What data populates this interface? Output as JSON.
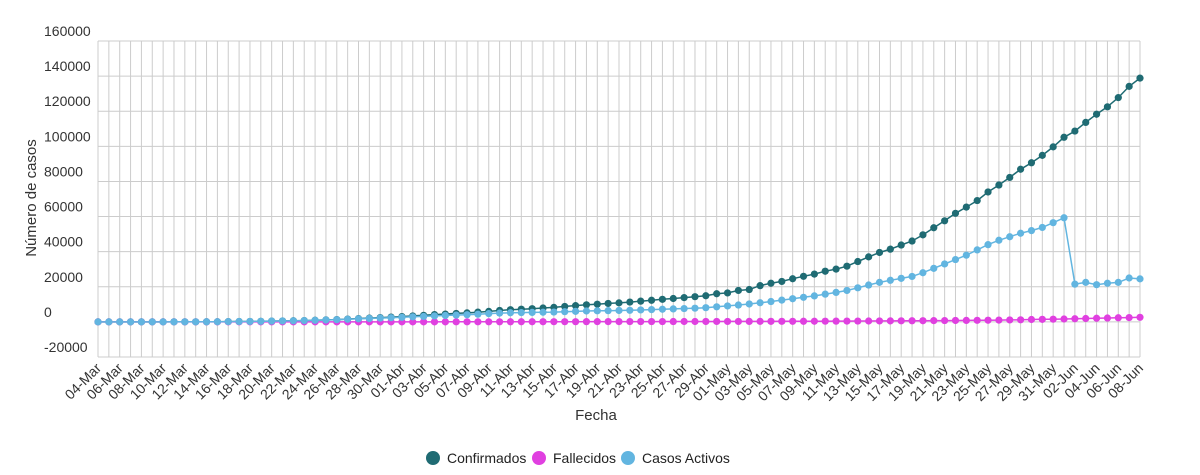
{
  "chart_data": {
    "type": "line",
    "xlabel": "Fecha",
    "ylabel": "Número de casos",
    "ylim": [
      -20000,
      160000
    ],
    "yticks": [
      "160000",
      "140000",
      "120000",
      "100000",
      "80000",
      "60000",
      "40000",
      "20000",
      "0",
      "-20000"
    ],
    "grid": true,
    "legend_position": "bottom",
    "categories": [
      "04-Mar",
      "05-Mar",
      "06-Mar",
      "07-Mar",
      "08-Mar",
      "09-Mar",
      "10-Mar",
      "11-Mar",
      "12-Mar",
      "13-Mar",
      "14-Mar",
      "15-Mar",
      "16-Mar",
      "17-Mar",
      "18-Mar",
      "19-Mar",
      "20-Mar",
      "21-Mar",
      "22-Mar",
      "23-Mar",
      "24-Mar",
      "25-Mar",
      "26-Mar",
      "27-Mar",
      "28-Mar",
      "29-Mar",
      "30-Mar",
      "31-Mar",
      "01-Abr",
      "02-Abr",
      "03-Abr",
      "04-Abr",
      "05-Abr",
      "06-Abr",
      "07-Abr",
      "08-Abr",
      "09-Abr",
      "10-Abr",
      "11-Abr",
      "12-Abr",
      "13-Abr",
      "14-Abr",
      "15-Abr",
      "16-Abr",
      "17-Abr",
      "18-Abr",
      "19-Abr",
      "20-Abr",
      "21-Abr",
      "22-Abr",
      "23-Abr",
      "24-Abr",
      "25-Abr",
      "26-Abr",
      "27-Abr",
      "28-Abr",
      "29-Abr",
      "30-Abr",
      "01-May",
      "02-May",
      "03-May",
      "04-May",
      "05-May",
      "06-May",
      "07-May",
      "08-May",
      "09-May",
      "10-May",
      "11-May",
      "12-May",
      "13-May",
      "14-May",
      "15-May",
      "16-May",
      "17-May",
      "18-May",
      "19-May",
      "20-May",
      "21-May",
      "22-May",
      "23-May",
      "24-May",
      "25-May",
      "26-May",
      "27-May",
      "28-May",
      "29-May",
      "30-May",
      "31-May",
      "01-Jun",
      "02-Jun",
      "03-Jun",
      "04-Jun",
      "05-Jun",
      "06-Jun",
      "07-Jun",
      "08-Jun"
    ],
    "label_every": 2,
    "series": [
      {
        "name": "Confirmados",
        "color": "#1f6b73",
        "values": [
          1,
          3,
          5,
          7,
          10,
          13,
          17,
          23,
          33,
          43,
          61,
          74,
          155,
          201,
          238,
          342,
          434,
          537,
          632,
          746,
          922,
          1142,
          1306,
          1610,
          1909,
          2139,
          2449,
          2738,
          3031,
          3404,
          3737,
          4161,
          4471,
          4815,
          5116,
          5546,
          5972,
          6501,
          6927,
          7213,
          7525,
          7917,
          8273,
          8807,
          9252,
          9730,
          10088,
          10507,
          10832,
          11296,
          11812,
          12306,
          12858,
          13331,
          13813,
          14365,
          14885,
          16023,
          16495,
          17908,
          18435,
          20643,
          22016,
          23048,
          24581,
          25972,
          27219,
          28866,
          30063,
          31721,
          34381,
          37040,
          39542,
          41428,
          43781,
          46059,
          49579,
          53617,
          57581,
          61857,
          65393,
          69102,
          73997,
          77961,
          82289,
          86943,
          90638,
          94858,
          99688,
          105159,
          108686,
          113628,
          118292,
          122499,
          127745,
          134150,
          138846
        ]
      },
      {
        "name": "Fallecidos",
        "color": "#e040e0",
        "values": [
          0,
          0,
          0,
          0,
          0,
          0,
          0,
          0,
          0,
          0,
          0,
          0,
          0,
          0,
          0,
          0,
          0,
          0,
          0,
          0,
          0,
          1,
          2,
          2,
          3,
          5,
          6,
          9,
          12,
          16,
          18,
          22,
          27,
          34,
          37,
          43,
          48,
          57,
          65,
          73,
          82,
          92,
          105,
          116,
          126,
          139,
          147,
          160,
          168,
          174,
          181,
          189,
          198,
          207,
          216,
          227,
          234,
          247,
          260,
          270,
          281,
          294,
          304,
          323,
          335,
          346,
          368,
          394,
          421,
          450,
          478,
          509,
          544,
          576,
          604,
          630,
          664,
          716,
          761,
          806,
          841,
          890,
          944,
          1017,
          1113,
          1188,
          1356,
          1448,
          1541,
          1637,
          1789,
          1925,
          2070,
          2199,
          2341,
          2450,
          2613
        ]
      },
      {
        "name": "Casos Activos",
        "color": "#62b5e0",
        "values": [
          1,
          3,
          5,
          7,
          10,
          13,
          17,
          23,
          33,
          43,
          61,
          74,
          155,
          201,
          238,
          342,
          430,
          530,
          620,
          720,
          890,
          1090,
          1240,
          1500,
          1760,
          1950,
          2200,
          2400,
          2600,
          2900,
          3100,
          3400,
          3650,
          3900,
          4100,
          4400,
          4700,
          5000,
          5200,
          5300,
          5400,
          5500,
          5600,
          5800,
          6000,
          6200,
          6300,
          6400,
          6500,
          6600,
          6800,
          7000,
          7200,
          7400,
          7600,
          7800,
          8100,
          8600,
          9100,
          9600,
          10200,
          10900,
          11600,
          12400,
          13200,
          14000,
          14800,
          15800,
          16800,
          17900,
          19400,
          21000,
          22500,
          23700,
          24800,
          25900,
          28000,
          30500,
          33000,
          35500,
          38000,
          41000,
          44000,
          46500,
          48500,
          50500,
          52000,
          53800,
          56500,
          59300,
          21500,
          22500,
          21200,
          22000,
          22500,
          25000,
          24500
        ]
      }
    ]
  }
}
